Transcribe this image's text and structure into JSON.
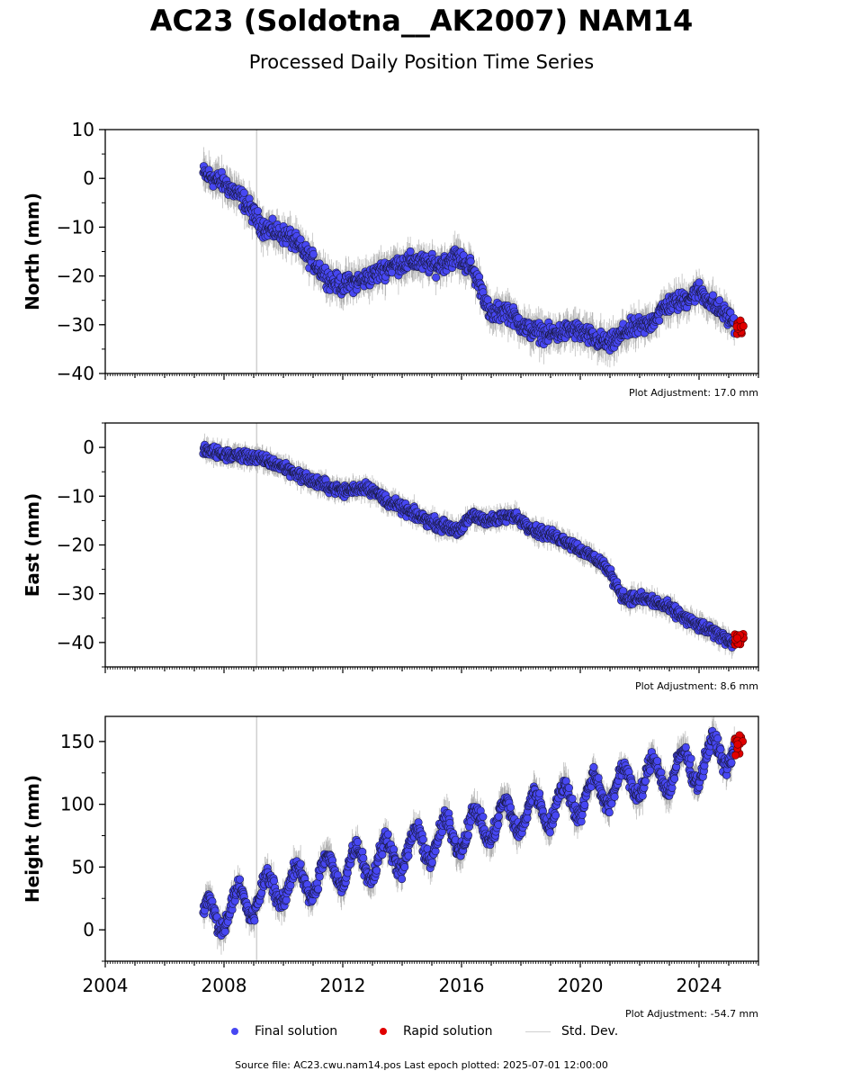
{
  "title": "AC23 (Soldotna__AK2007) NAM14",
  "subtitle": "Processed Daily Position Time Series",
  "legend": {
    "final_label": "Final solution",
    "rapid_label": "Rapid solution",
    "std_label": "Std. Dev."
  },
  "footer": {
    "source_line": "Source file: AC23.cwu.nam14.pos  Last epoch plotted: 2025-07-01 12:00:00"
  },
  "colors": {
    "final": "#4747f2",
    "rapid": "#e00000",
    "std_dev": "#c8c8c8",
    "vertical_marker": "#d0d0d0"
  },
  "chart_data": [
    {
      "type": "scatter",
      "ylabel": "North (mm)",
      "ylim": [
        -40,
        10
      ],
      "yticks": [
        10,
        0,
        -10,
        -20,
        -30,
        -40
      ],
      "ytick_labels": [
        "10",
        "0",
        "−10",
        "−20",
        "−30",
        "−40"
      ],
      "xlim": [
        2004,
        2026
      ],
      "adjustment": "Plot Adjustment: 17.0 mm",
      "vertical_line_x": 2009.1,
      "trend": [
        [
          2007.3,
          1
        ],
        [
          2008.0,
          -1
        ],
        [
          2008.6,
          -4
        ],
        [
          2009.3,
          -10
        ],
        [
          2010.2,
          -12
        ],
        [
          2011.0,
          -17
        ],
        [
          2011.6,
          -21
        ],
        [
          2012.0,
          -22
        ],
        [
          2012.6,
          -21
        ],
        [
          2013.0,
          -20
        ],
        [
          2013.6,
          -18
        ],
        [
          2014.4,
          -17
        ],
        [
          2015.2,
          -18
        ],
        [
          2015.8,
          -16
        ],
        [
          2016.3,
          -18
        ],
        [
          2016.7,
          -23
        ],
        [
          2016.95,
          -28
        ],
        [
          2017.5,
          -27
        ],
        [
          2018.2,
          -31
        ],
        [
          2019.0,
          -32
        ],
        [
          2019.8,
          -31
        ],
        [
          2020.5,
          -33
        ],
        [
          2021.0,
          -34
        ],
        [
          2021.6,
          -31
        ],
        [
          2022.3,
          -30
        ],
        [
          2022.9,
          -26
        ],
        [
          2023.5,
          -25
        ],
        [
          2024.0,
          -23
        ],
        [
          2024.5,
          -26
        ],
        [
          2025.3,
          -30
        ]
      ],
      "scatter_noise": 1.6,
      "final_end": 2025.2,
      "rapid_x": [
        2025.2,
        2025.5
      ],
      "rapid_y": [
        -32,
        -29
      ]
    },
    {
      "type": "scatter",
      "ylabel": "East (mm)",
      "ylim": [
        -45,
        5
      ],
      "yticks": [
        0,
        -10,
        -20,
        -30,
        -40
      ],
      "ytick_labels": [
        "0",
        "−10",
        "−20",
        "−30",
        "−40"
      ],
      "xlim": [
        2004,
        2026
      ],
      "adjustment": "Plot Adjustment: 8.6 mm",
      "vertical_line_x": 2009.1,
      "trend": [
        [
          2007.3,
          -0.5
        ],
        [
          2008.0,
          -1.5
        ],
        [
          2009.0,
          -2
        ],
        [
          2010.0,
          -4
        ],
        [
          2011.0,
          -7
        ],
        [
          2012.0,
          -9
        ],
        [
          2012.8,
          -8
        ],
        [
          2013.5,
          -11
        ],
        [
          2014.5,
          -14
        ],
        [
          2015.3,
          -16
        ],
        [
          2016.0,
          -17
        ],
        [
          2016.3,
          -14
        ],
        [
          2017.0,
          -15
        ],
        [
          2017.8,
          -14
        ],
        [
          2018.5,
          -17
        ],
        [
          2019.5,
          -19
        ],
        [
          2020.0,
          -21
        ],
        [
          2020.8,
          -24
        ],
        [
          2021.5,
          -31
        ],
        [
          2022.2,
          -31
        ],
        [
          2023.0,
          -33
        ],
        [
          2023.8,
          -36
        ],
        [
          2024.5,
          -38
        ],
        [
          2025.2,
          -40
        ]
      ],
      "scatter_noise": 1.0,
      "final_end": 2025.2,
      "rapid_x": [
        2025.2,
        2025.5
      ],
      "rapid_y": [
        -41,
        -38
      ]
    },
    {
      "type": "scatter",
      "ylabel": "Height (mm)",
      "ylim": [
        -25,
        170
      ],
      "yticks": [
        150,
        100,
        50,
        0
      ],
      "ytick_labels": [
        "150",
        "100",
        "50",
        "0"
      ],
      "xlim": [
        2004,
        2026
      ],
      "xticks": [
        2004,
        2008,
        2012,
        2016,
        2020,
        2024
      ],
      "xtick_labels": [
        "2004",
        "2008",
        "2012",
        "2016",
        "2020",
        "2024"
      ],
      "adjustment": "Plot Adjustment: -54.7 mm",
      "vertical_line_x": 2009.1,
      "trend": [
        [
          2007.3,
          8
        ],
        [
          2008.0,
          15
        ],
        [
          2009.0,
          25
        ],
        [
          2010.0,
          35
        ],
        [
          2011.0,
          40
        ],
        [
          2012.0,
          50
        ],
        [
          2013.0,
          55
        ],
        [
          2014.0,
          62
        ],
        [
          2015.0,
          70
        ],
        [
          2016.0,
          78
        ],
        [
          2017.0,
          85
        ],
        [
          2018.0,
          92
        ],
        [
          2019.0,
          98
        ],
        [
          2020.0,
          105
        ],
        [
          2021.0,
          113
        ],
        [
          2022.0,
          120
        ],
        [
          2023.0,
          125
        ],
        [
          2024.0,
          132
        ],
        [
          2025.0,
          145
        ]
      ],
      "seasonal_amplitude": 14,
      "scatter_noise": 6,
      "final_end": 2025.2,
      "rapid_x": [
        2025.2,
        2025.5
      ],
      "rapid_y": [
        138,
        155
      ]
    }
  ]
}
